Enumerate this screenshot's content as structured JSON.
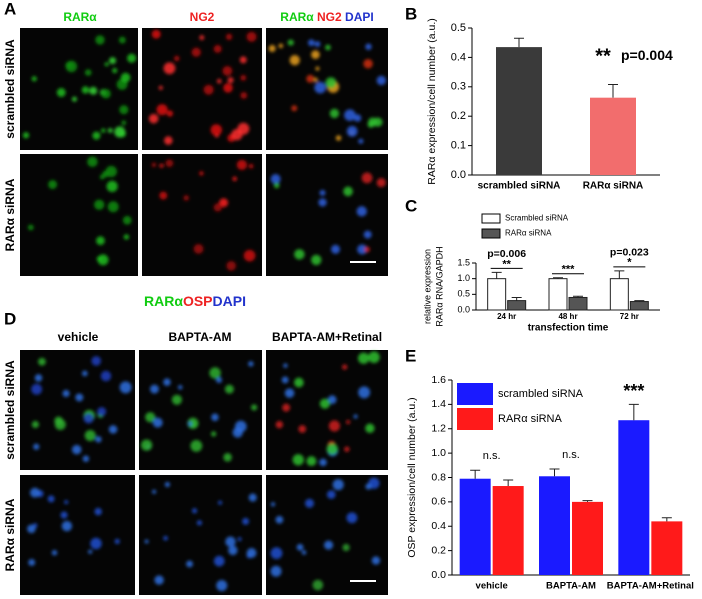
{
  "panels": {
    "A": {
      "label": "A",
      "column_headers": [
        "RARα",
        "NG2"
      ],
      "merge_header": [
        "RARα",
        "NG2",
        "DAPI"
      ],
      "row_labels": [
        "scrambled siRNA",
        "RARα siRNA"
      ]
    },
    "D": {
      "label": "D",
      "title": [
        "RARα",
        "OSP",
        "DAPI"
      ],
      "column_headers": [
        "vehicle",
        "BAPTA-AM",
        "BAPTA-AM+Retinal"
      ],
      "row_labels": [
        "scrambled siRNA",
        "RARα siRNA"
      ]
    }
  },
  "chart_data": [
    {
      "type": "bar",
      "panel_label": "B",
      "y_label": "RARα expression/cell number (a.u.)",
      "categories": [
        "scrambled siRNA",
        "RARα siRNA"
      ],
      "values": [
        0.435,
        0.263
      ],
      "errors": [
        0.03,
        0.045
      ],
      "colors": [
        "#3a3a3a",
        "#f26d6d"
      ],
      "ylim": [
        0,
        0.5
      ],
      "yticks": [
        {
          "value": 0,
          "label": "0.0"
        },
        0.1,
        0.2,
        0.3,
        0.4,
        0.5
      ],
      "annotations": [
        null,
        "**"
      ],
      "p_values": [
        null,
        "p=0.004"
      ]
    },
    {
      "type": "bar",
      "panel_label": "C",
      "y_label": [
        "relative expression",
        "RARα  RNA/GAPDH"
      ],
      "x_label": "transfection time",
      "categories": [
        "24 hr",
        "48 hr",
        "72 hr"
      ],
      "series": [
        {
          "name": "Scrambled siRNA",
          "color": "#ffffff",
          "values": [
            1.0,
            1.0,
            1.0
          ],
          "errors": [
            0.2,
            0.03,
            0.25
          ]
        },
        {
          "name": "RARα siRNA",
          "color": "#555555",
          "values": [
            0.3,
            0.4,
            0.27
          ],
          "errors": [
            0.1,
            0.04,
            0.03
          ]
        }
      ],
      "ylim": [
        0,
        1.5
      ],
      "yticks": [
        {
          "value": 0,
          "label": "0.0"
        },
        0.5,
        {
          "value": 1,
          "label": "1.0"
        },
        1.5
      ],
      "annotations": [
        "**",
        "***",
        "*"
      ],
      "p_values": [
        "p=0.006",
        null,
        "p=0.023"
      ],
      "legend": "upper left"
    },
    {
      "type": "bar",
      "panel_label": "E",
      "y_label": "OSP expression/cell number (a.u.)",
      "categories": [
        "vehicle",
        "BAPTA-AM",
        "BAPTA-AM+Retinal"
      ],
      "series": [
        {
          "name": "scrambled siRNA",
          "color": "#1a1aff",
          "values": [
            0.79,
            0.81,
            1.27
          ],
          "errors": [
            0.07,
            0.06,
            0.13
          ]
        },
        {
          "name": "RARα siRNA",
          "color": "#ff1a1a",
          "values": [
            0.73,
            0.6,
            0.44
          ],
          "errors": [
            0.05,
            0.01,
            0.03
          ]
        }
      ],
      "ylim": [
        0,
        1.6
      ],
      "yticks": [
        {
          "value": 0,
          "label": "0.0"
        },
        0.2,
        0.4,
        0.6,
        0.8,
        {
          "value": 1,
          "label": "1.0"
        },
        1.2,
        1.4,
        1.6
      ],
      "annotations": [
        "n.s.",
        "n.s.",
        "***"
      ],
      "legend": "upper left"
    }
  ]
}
